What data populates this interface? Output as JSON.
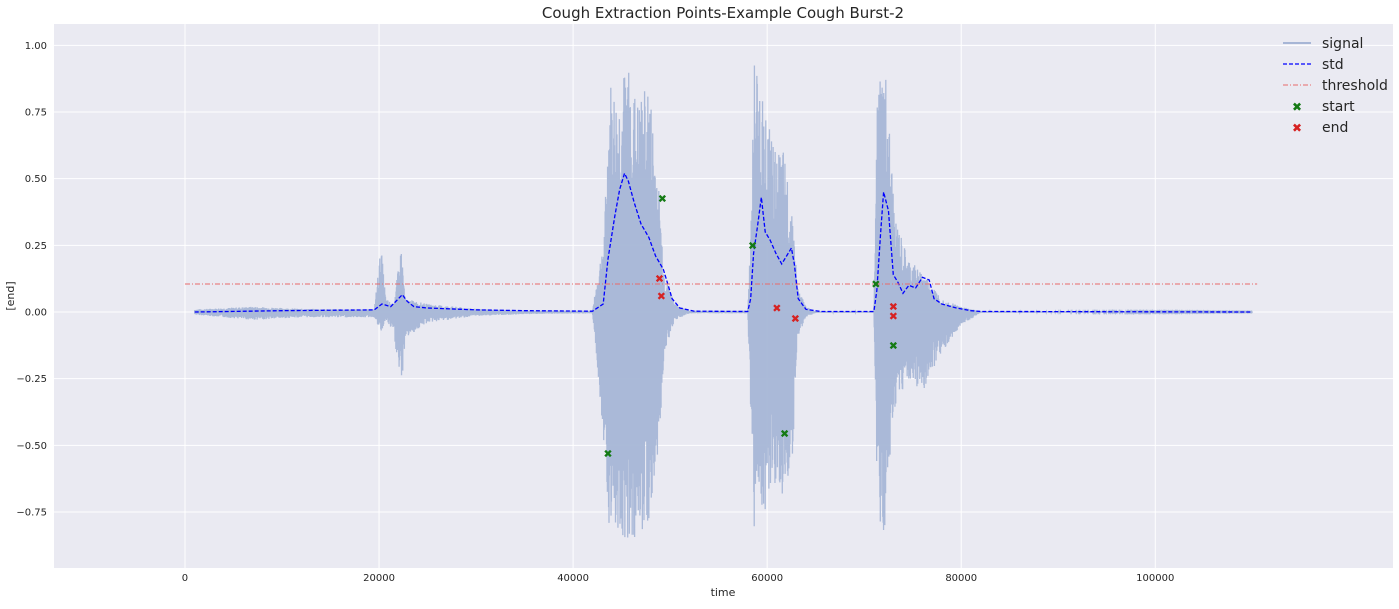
{
  "chart_data": {
    "type": "line",
    "title": "Cough Extraction Points-Example Cough Burst-2",
    "xlabel": "time",
    "ylabel": "[end]",
    "xlim": [
      -13500,
      124500
    ],
    "ylim": [
      -0.96,
      1.08
    ],
    "xticks": [
      0,
      20000,
      40000,
      60000,
      80000,
      100000
    ],
    "yticks": [
      -0.75,
      -0.5,
      -0.25,
      0.0,
      0.25,
      0.5,
      0.75,
      1.0
    ],
    "ytick_labels": [
      "−0.75",
      "−0.50",
      "−0.25",
      "0.00",
      "0.25",
      "0.50",
      "0.75",
      "1.00"
    ],
    "grid": true,
    "legend_position": "top-right",
    "series": [
      {
        "name": "signal",
        "style": "solid",
        "color": "#a7b6d6",
        "envelope": [
          [
            1000,
            0.01,
            -0.01
          ],
          [
            7000,
            0.02,
            -0.03
          ],
          [
            12000,
            0.012,
            -0.02
          ],
          [
            19500,
            0.01,
            -0.02
          ],
          [
            20200,
            0.25,
            -0.08
          ],
          [
            20700,
            0.05,
            -0.03
          ],
          [
            21500,
            0.03,
            -0.08
          ],
          [
            22300,
            0.25,
            -0.3
          ],
          [
            22700,
            0.05,
            -0.1
          ],
          [
            25000,
            0.03,
            -0.04
          ],
          [
            30000,
            0.012,
            -0.015
          ],
          [
            35000,
            0.006,
            -0.008
          ],
          [
            42000,
            0.005,
            -0.005
          ],
          [
            43200,
            0.3,
            -0.5
          ],
          [
            43800,
            0.87,
            -0.85
          ],
          [
            44600,
            0.8,
            -0.82
          ],
          [
            45600,
            0.95,
            -0.87
          ],
          [
            46600,
            0.78,
            -0.85
          ],
          [
            47800,
            0.87,
            -0.8
          ],
          [
            48800,
            0.5,
            -0.55
          ],
          [
            49400,
            0.15,
            -0.15
          ],
          [
            50500,
            0.03,
            -0.03
          ],
          [
            52000,
            0.005,
            -0.005
          ],
          [
            58000,
            0.005,
            -0.005
          ],
          [
            58300,
            0.3,
            -0.4
          ],
          [
            58700,
            0.98,
            -0.85
          ],
          [
            59600,
            0.8,
            -0.75
          ],
          [
            60800,
            0.6,
            -0.72
          ],
          [
            61700,
            0.6,
            -0.7
          ],
          [
            62600,
            0.4,
            -0.6
          ],
          [
            63100,
            0.1,
            -0.1
          ],
          [
            64000,
            0.02,
            -0.02
          ],
          [
            65000,
            0.003,
            -0.003
          ],
          [
            71000,
            0.003,
            -0.003
          ],
          [
            71400,
            0.9,
            -0.8
          ],
          [
            72200,
            0.9,
            -0.85
          ],
          [
            73200,
            0.35,
            -0.35
          ],
          [
            74500,
            0.2,
            -0.25
          ],
          [
            76000,
            0.15,
            -0.3
          ],
          [
            78000,
            0.05,
            -0.15
          ],
          [
            80000,
            0.02,
            -0.05
          ],
          [
            82000,
            0.003,
            -0.003
          ],
          [
            110000,
            0.001,
            -0.001
          ]
        ]
      },
      {
        "name": "std",
        "style": "dashed",
        "color": "#0000ff",
        "x": [
          1000,
          10000,
          19500,
          20300,
          21200,
          22400,
          22900,
          23600,
          25000,
          30000,
          35000,
          42000,
          43100,
          43600,
          44300,
          44800,
          45300,
          45700,
          46300,
          47000,
          47800,
          48500,
          49300,
          49800,
          50200,
          51000,
          52500,
          58000,
          58300,
          58600,
          59000,
          59400,
          59800,
          60300,
          60900,
          61500,
          62000,
          62500,
          62800,
          63200,
          64000,
          65500,
          71000,
          71300,
          71700,
          72000,
          72500,
          73000,
          73500,
          74000,
          74600,
          75300,
          76000,
          76700,
          77200,
          78000,
          79500,
          81000,
          82000,
          110000
        ],
        "y": [
          0.0,
          0.005,
          0.008,
          0.03,
          0.02,
          0.065,
          0.04,
          0.02,
          0.015,
          0.008,
          0.005,
          0.003,
          0.03,
          0.2,
          0.36,
          0.46,
          0.52,
          0.49,
          0.41,
          0.33,
          0.28,
          0.21,
          0.16,
          0.1,
          0.05,
          0.015,
          0.003,
          0.002,
          0.05,
          0.22,
          0.32,
          0.43,
          0.3,
          0.27,
          0.22,
          0.18,
          0.21,
          0.24,
          0.18,
          0.05,
          0.01,
          0.002,
          0.002,
          0.08,
          0.3,
          0.45,
          0.38,
          0.14,
          0.11,
          0.07,
          0.1,
          0.09,
          0.13,
          0.12,
          0.05,
          0.03,
          0.015,
          0.005,
          0.002,
          0.0
        ]
      },
      {
        "name": "threshold",
        "style": "dash-dot",
        "color": "#e86a6a",
        "x": [
          0,
          110500
        ],
        "y": [
          0.105,
          0.105
        ]
      }
    ],
    "scatter": [
      {
        "name": "start",
        "color": "#157a15",
        "points": [
          [
            43600,
            -0.53
          ],
          [
            49200,
            0.425
          ],
          [
            58500,
            0.25
          ],
          [
            61800,
            -0.455
          ],
          [
            71200,
            0.105
          ],
          [
            73000,
            -0.125
          ]
        ]
      },
      {
        "name": "end",
        "color": "#d62222",
        "points": [
          [
            48900,
            0.125
          ],
          [
            49100,
            0.06
          ],
          [
            61000,
            0.015
          ],
          [
            62900,
            -0.025
          ],
          [
            73000,
            0.02
          ],
          [
            73000,
            -0.015
          ]
        ]
      }
    ]
  }
}
